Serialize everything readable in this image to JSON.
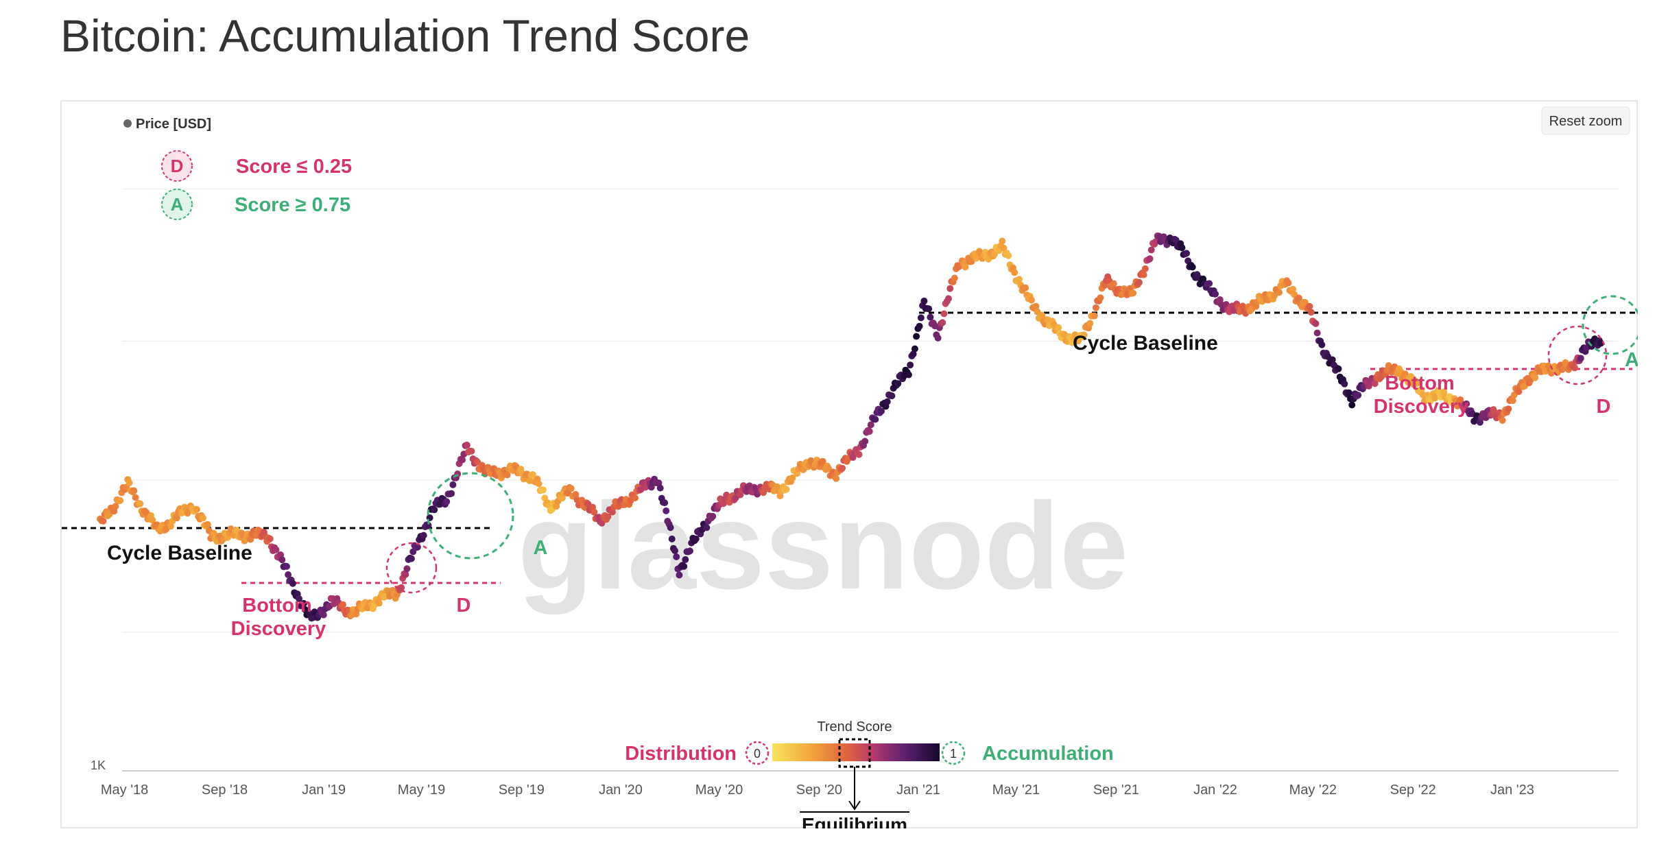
{
  "page": {
    "title": "Bitcoin: Accumulation Trend Score"
  },
  "toolbar": {
    "reset_zoom_label": "Reset zoom"
  },
  "legend": {
    "price_label": "Price [USD]",
    "distribution_badge": "D",
    "distribution_text": "Score ≤ 0.25",
    "accumulation_badge": "A",
    "accumulation_text": "Score ≥ 0.75"
  },
  "watermark": "glassnode",
  "colorbar": {
    "title": "Trend Score",
    "left_label": "Distribution",
    "right_label": "Accumulation",
    "min_label": "0",
    "max_label": "1",
    "equilibrium_label": "Equilibrium"
  },
  "annotations": {
    "cycle_baseline_1": "Cycle Baseline",
    "cycle_baseline_2": "Cycle Baseline",
    "bottom_discovery_1_line1": "Bottom",
    "bottom_discovery_1_line2": "Discovery",
    "bottom_discovery_2_line1": "Bottom",
    "bottom_discovery_2_line2": "Discovery",
    "d_marker_1": "D",
    "d_marker_2": "D",
    "a_marker_1": "A",
    "a_marker_2": "A"
  },
  "colors": {
    "distribution": "#d6336c",
    "accumulation": "#3dae74",
    "price_dot": "#666666",
    "score_low": "#f5e663",
    "score_mid": "#b53a6b",
    "score_high": "#1a0b3d"
  },
  "chart_data": {
    "type": "scatter",
    "title": "Bitcoin: Accumulation Trend Score",
    "xlabel": "",
    "ylabel": "",
    "y_scale": "log",
    "y_tick_labels": [
      "1K"
    ],
    "x_tick_labels": [
      "May '18",
      "Sep '18",
      "Jan '19",
      "May '19",
      "Sep '19",
      "Jan '20",
      "May '20",
      "Sep '20",
      "Jan '21",
      "May '21",
      "Sep '21",
      "Jan '22",
      "May '22",
      "Sep '22",
      "Jan '23"
    ],
    "x_range": [
      "2018-04-01",
      "2023-04-30"
    ],
    "series": [
      {
        "name": "Price [USD]",
        "color_by": "Trend Score (0 = Distribution, 1 = Accumulation)",
        "points": [
          {
            "date": "2018-04-01",
            "price": 7000,
            "score": 0.35
          },
          {
            "date": "2018-05-05",
            "price": 9600,
            "score": 0.3
          },
          {
            "date": "2018-06-10",
            "price": 6700,
            "score": 0.3
          },
          {
            "date": "2018-07-25",
            "price": 8200,
            "score": 0.25
          },
          {
            "date": "2018-08-15",
            "price": 6400,
            "score": 0.3
          },
          {
            "date": "2018-09-20",
            "price": 6500,
            "score": 0.25
          },
          {
            "date": "2018-10-25",
            "price": 6400,
            "score": 0.5
          },
          {
            "date": "2018-11-20",
            "price": 4600,
            "score": 0.85
          },
          {
            "date": "2018-12-15",
            "price": 3300,
            "score": 0.95
          },
          {
            "date": "2019-01-10",
            "price": 3800,
            "score": 0.7
          },
          {
            "date": "2019-02-08",
            "price": 3500,
            "score": 0.3
          },
          {
            "date": "2019-03-10",
            "price": 3900,
            "score": 0.2
          },
          {
            "date": "2019-04-01",
            "price": 4100,
            "score": 0.35
          },
          {
            "date": "2019-04-15",
            "price": 5100,
            "score": 0.8
          },
          {
            "date": "2019-05-15",
            "price": 7900,
            "score": 0.9
          },
          {
            "date": "2019-06-01",
            "price": 8600,
            "score": 0.85
          },
          {
            "date": "2019-06-26",
            "price": 12900,
            "score": 0.6
          },
          {
            "date": "2019-07-20",
            "price": 10500,
            "score": 0.4
          },
          {
            "date": "2019-08-20",
            "price": 10800,
            "score": 0.3
          },
          {
            "date": "2019-09-15",
            "price": 10300,
            "score": 0.25
          },
          {
            "date": "2019-10-05",
            "price": 8100,
            "score": 0.15
          },
          {
            "date": "2019-11-01",
            "price": 9200,
            "score": 0.35
          },
          {
            "date": "2019-12-05",
            "price": 7300,
            "score": 0.55
          },
          {
            "date": "2020-01-15",
            "price": 8800,
            "score": 0.4
          },
          {
            "date": "2020-02-15",
            "price": 10200,
            "score": 0.8
          },
          {
            "date": "2020-03-13",
            "price": 4900,
            "score": 0.85
          },
          {
            "date": "2020-04-10",
            "price": 6900,
            "score": 0.9
          },
          {
            "date": "2020-05-10",
            "price": 8700,
            "score": 0.5
          },
          {
            "date": "2020-06-15",
            "price": 9400,
            "score": 0.7
          },
          {
            "date": "2020-07-15",
            "price": 9200,
            "score": 0.2
          },
          {
            "date": "2020-08-20",
            "price": 11700,
            "score": 0.3
          },
          {
            "date": "2020-09-20",
            "price": 10500,
            "score": 0.35
          },
          {
            "date": "2020-10-20",
            "price": 12800,
            "score": 0.6
          },
          {
            "date": "2020-11-20",
            "price": 18500,
            "score": 0.9
          },
          {
            "date": "2020-12-20",
            "price": 24000,
            "score": 0.95
          },
          {
            "date": "2021-01-08",
            "price": 40000,
            "score": 0.95
          },
          {
            "date": "2021-01-25",
            "price": 32000,
            "score": 0.7
          },
          {
            "date": "2021-02-20",
            "price": 56000,
            "score": 0.35
          },
          {
            "date": "2021-03-15",
            "price": 58000,
            "score": 0.25
          },
          {
            "date": "2021-04-14",
            "price": 63000,
            "score": 0.2
          },
          {
            "date": "2021-05-20",
            "price": 40000,
            "score": 0.3
          },
          {
            "date": "2021-06-22",
            "price": 32000,
            "score": 0.2
          },
          {
            "date": "2021-07-20",
            "price": 30000,
            "score": 0.2
          },
          {
            "date": "2021-08-20",
            "price": 48000,
            "score": 0.45
          },
          {
            "date": "2021-09-20",
            "price": 43000,
            "score": 0.35
          },
          {
            "date": "2021-10-20",
            "price": 66000,
            "score": 0.65
          },
          {
            "date": "2021-11-10",
            "price": 68000,
            "score": 0.9
          },
          {
            "date": "2021-12-15",
            "price": 48000,
            "score": 0.95
          },
          {
            "date": "2022-01-20",
            "price": 38000,
            "score": 0.6
          },
          {
            "date": "2022-02-20",
            "price": 40000,
            "score": 0.3
          },
          {
            "date": "2022-03-28",
            "price": 47000,
            "score": 0.3
          },
          {
            "date": "2022-04-25",
            "price": 39000,
            "score": 0.35
          },
          {
            "date": "2022-05-12",
            "price": 29000,
            "score": 0.9
          },
          {
            "date": "2022-06-18",
            "price": 19000,
            "score": 0.95
          },
          {
            "date": "2022-07-20",
            "price": 23000,
            "score": 0.5
          },
          {
            "date": "2022-08-15",
            "price": 24000,
            "score": 0.3
          },
          {
            "date": "2022-09-15",
            "price": 19500,
            "score": 0.2
          },
          {
            "date": "2022-10-20",
            "price": 19200,
            "score": 0.15
          },
          {
            "date": "2022-11-15",
            "price": 16500,
            "score": 0.95
          },
          {
            "date": "2022-12-20",
            "price": 16800,
            "score": 0.4
          },
          {
            "date": "2023-01-20",
            "price": 22500,
            "score": 0.35
          },
          {
            "date": "2023-02-20",
            "price": 24500,
            "score": 0.3
          },
          {
            "date": "2023-03-15",
            "price": 24000,
            "score": 0.4
          },
          {
            "date": "2023-03-30",
            "price": 28500,
            "score": 0.85
          },
          {
            "date": "2023-04-20",
            "price": 29500,
            "score": 0.95
          }
        ]
      }
    ],
    "legend_placement": "top-left",
    "grid": true
  }
}
